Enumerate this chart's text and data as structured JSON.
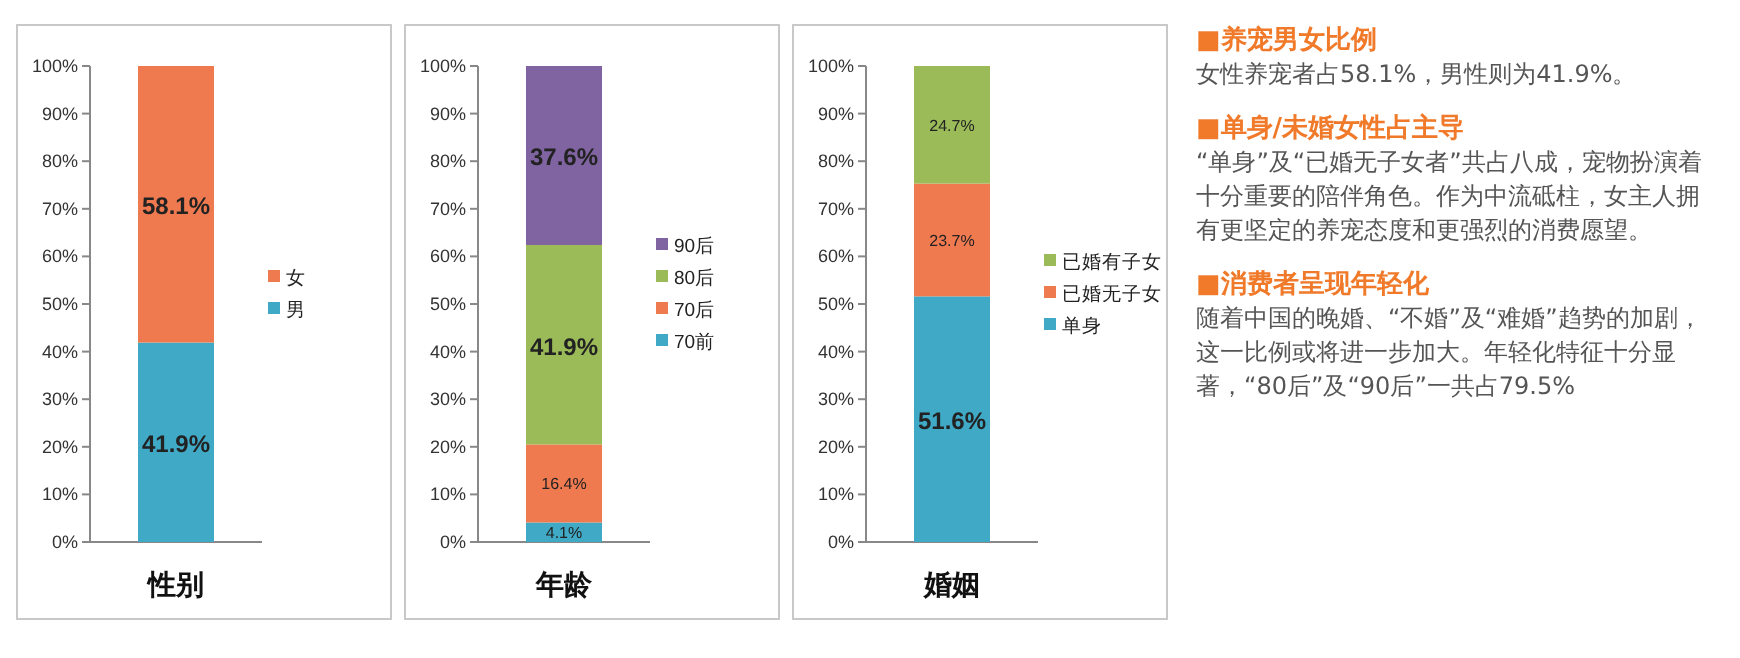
{
  "chart_data": [
    {
      "type": "bar",
      "stacked": true,
      "categories": [
        "性别"
      ],
      "ylim": [
        0,
        100
      ],
      "yticks": [
        {
          "value": 0,
          "label": "0%"
        },
        {
          "value": 10,
          "label": "10%"
        },
        {
          "value": 20,
          "label": "20%"
        },
        {
          "value": 30,
          "label": "30%"
        },
        {
          "value": 40,
          "label": "40%"
        },
        {
          "value": 50,
          "label": "50%"
        },
        {
          "value": 60,
          "label": "60%"
        },
        {
          "value": 70,
          "label": "70%"
        },
        {
          "value": 80,
          "label": "80%"
        },
        {
          "value": 90,
          "label": "90%"
        },
        {
          "value": 100,
          "label": "100%"
        }
      ],
      "legend": "right",
      "series": [
        {
          "name": "男",
          "color": "#3fa9c6",
          "values": [
            41.9
          ],
          "value_labels": [
            "41.9%"
          ]
        },
        {
          "name": "女",
          "color": "#f07a50",
          "values": [
            58.1
          ],
          "value_labels": [
            "58.1%"
          ]
        }
      ]
    },
    {
      "type": "bar",
      "stacked": true,
      "categories": [
        "年龄"
      ],
      "ylim": [
        0,
        100
      ],
      "yticks": [
        {
          "value": 0,
          "label": "0%"
        },
        {
          "value": 10,
          "label": "10%"
        },
        {
          "value": 20,
          "label": "20%"
        },
        {
          "value": 30,
          "label": "30%"
        },
        {
          "value": 40,
          "label": "40%"
        },
        {
          "value": 50,
          "label": "50%"
        },
        {
          "value": 60,
          "label": "60%"
        },
        {
          "value": 70,
          "label": "70%"
        },
        {
          "value": 80,
          "label": "80%"
        },
        {
          "value": 90,
          "label": "90%"
        },
        {
          "value": 100,
          "label": "100%"
        }
      ],
      "legend": "right",
      "series": [
        {
          "name": "70前",
          "color": "#3fa9c6",
          "values": [
            4.1
          ],
          "value_labels": [
            "4.1%"
          ]
        },
        {
          "name": "70后",
          "color": "#f07a50",
          "values": [
            16.4
          ],
          "value_labels": [
            "16.4%"
          ]
        },
        {
          "name": "80后",
          "color": "#9bbb59",
          "values": [
            41.9
          ],
          "value_labels": [
            "41.9%"
          ]
        },
        {
          "name": "90后",
          "color": "#8064a2",
          "values": [
            37.6
          ],
          "value_labels": [
            "37.6%"
          ]
        }
      ]
    },
    {
      "type": "bar",
      "stacked": true,
      "categories": [
        "婚姻"
      ],
      "ylim": [
        0,
        100
      ],
      "yticks": [
        {
          "value": 0,
          "label": "0%"
        },
        {
          "value": 10,
          "label": "10%"
        },
        {
          "value": 20,
          "label": "20%"
        },
        {
          "value": 30,
          "label": "30%"
        },
        {
          "value": 40,
          "label": "40%"
        },
        {
          "value": 50,
          "label": "50%"
        },
        {
          "value": 60,
          "label": "60%"
        },
        {
          "value": 70,
          "label": "70%"
        },
        {
          "value": 80,
          "label": "80%"
        },
        {
          "value": 90,
          "label": "90%"
        },
        {
          "value": 100,
          "label": "100%"
        }
      ],
      "legend": "right",
      "series": [
        {
          "name": "单身",
          "color": "#3fa9c6",
          "values": [
            51.6
          ],
          "value_labels": [
            "51.6%"
          ]
        },
        {
          "name": "已婚无子女",
          "color": "#f07a50",
          "values": [
            23.7
          ],
          "value_labels": [
            "23.7%"
          ]
        },
        {
          "name": "已婚有子女",
          "color": "#9bbb59",
          "values": [
            24.7
          ],
          "value_labels": [
            "24.7%"
          ]
        }
      ]
    },
    {
      "type": "other",
      "annotations": [
        "■养宠男女比例",
        "女性养宠者占58.1%，男性则为41.9%。",
        "■单身/未婚女性占主导",
        "“单身”及“已婚无子女者”共占八成，宠物扮演着十分重要的陪伴角色。作为中流砥柱，女主人拥有更坚定的养宠态度和更强烈的消费愿望。",
        "■消费者呈现年轻化",
        "随着中国的晚婚、“不婚”及“难婚”趋势的加剧，这一比例或将进一步加大。年轻化特征十分显著，“80后”及“90后”一共占79.5%"
      ]
    }
  ]
}
